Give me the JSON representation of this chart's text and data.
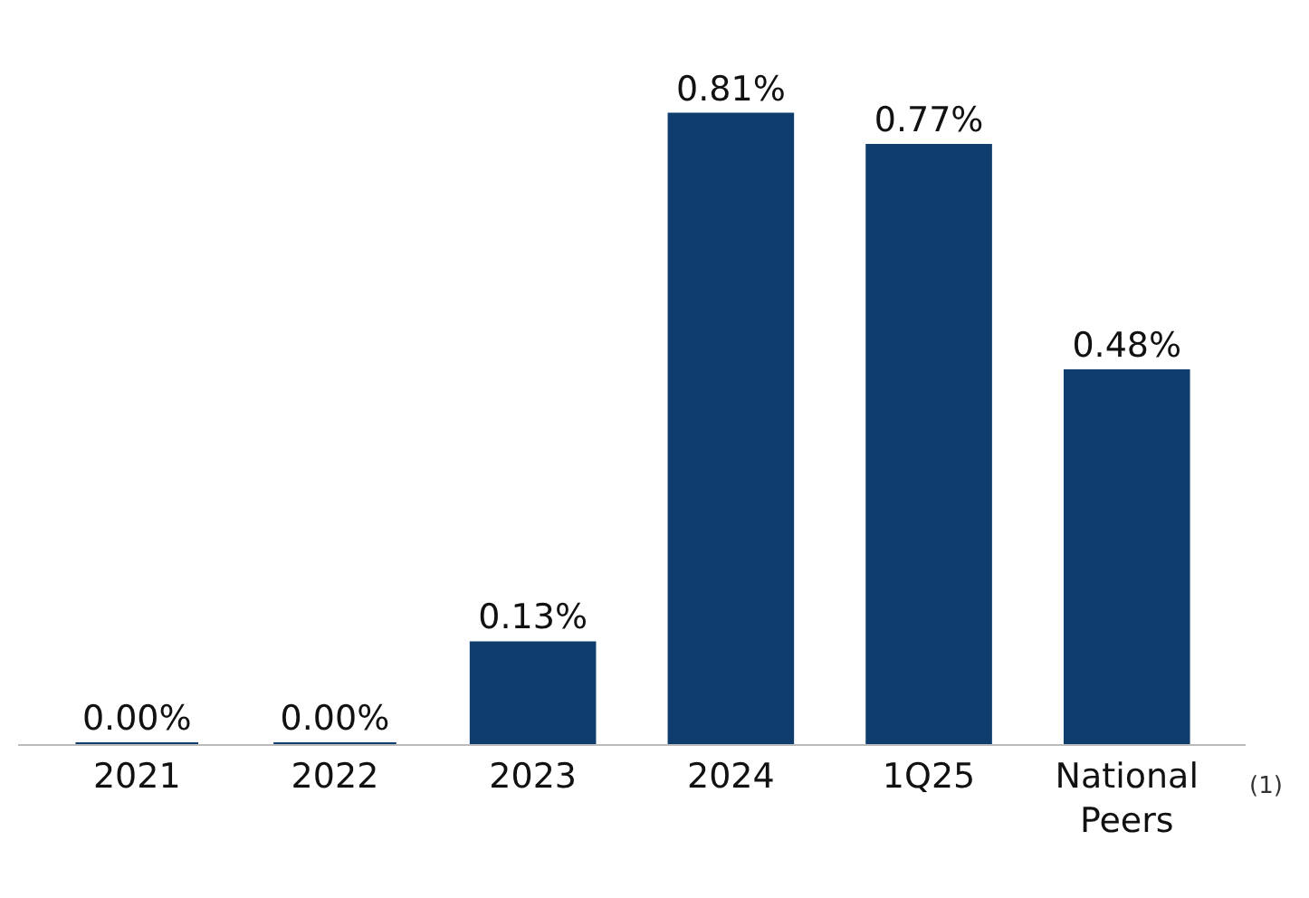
{
  "chart_data": {
    "type": "bar",
    "categories": [
      "2021",
      "2022",
      "2023",
      "2024",
      "1Q25",
      "National\nPeers"
    ],
    "values": [
      0.0,
      0.0,
      0.13,
      0.81,
      0.77,
      0.48
    ],
    "value_labels": [
      "0.00%",
      "0.00%",
      "0.13%",
      "0.81%",
      "0.77%",
      "0.48%"
    ],
    "color": "#0f3d6e",
    "annotations": [
      "(1)"
    ]
  }
}
